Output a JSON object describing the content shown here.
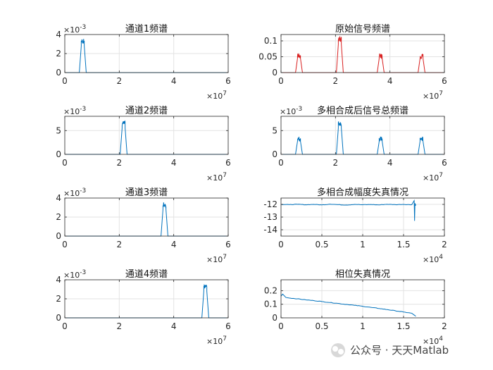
{
  "chart_data": [
    {
      "type": "line",
      "title": "通道1频谱",
      "color": "#0072bd",
      "xlim": [
        0,
        6
      ],
      "ylim": [
        0,
        4
      ],
      "xticks": [
        "0",
        "2",
        "4",
        "6"
      ],
      "yticks": [
        "0",
        "2",
        "4"
      ],
      "x_exponent": {
        "base": "×10",
        "power": "7"
      },
      "y_exponent": {
        "base": "×10",
        "power": "-3"
      },
      "peaks": [
        {
          "center": 0.66,
          "halfwidth": 0.055,
          "value": 3.3
        }
      ],
      "peak_noise": 0.25
    },
    {
      "type": "line",
      "title": "原始信号频谱",
      "color": "#d92020",
      "xlim": [
        0,
        6
      ],
      "ylim": [
        0,
        0.12
      ],
      "xticks": [
        "0",
        "2",
        "4",
        "6"
      ],
      "yticks": [
        "0",
        "0.05",
        "0.1"
      ],
      "x_exponent": {
        "base": "×10",
        "power": "7"
      },
      "y_exponent": null,
      "peaks": [
        {
          "center": 0.66,
          "halfwidth": 0.055,
          "value": 0.052
        },
        {
          "center": 2.16,
          "halfwidth": 0.055,
          "value": 0.105
        },
        {
          "center": 3.66,
          "halfwidth": 0.055,
          "value": 0.052
        },
        {
          "center": 5.16,
          "halfwidth": 0.055,
          "value": 0.052
        }
      ],
      "peak_noise": 0.008
    },
    {
      "type": "line",
      "title": "通道2频谱",
      "color": "#0072bd",
      "xlim": [
        0,
        6
      ],
      "ylim": [
        0,
        8
      ],
      "xticks": [
        "0",
        "2",
        "4",
        "6"
      ],
      "yticks": [
        "0",
        "5"
      ],
      "x_exponent": {
        "base": "×10",
        "power": "7"
      },
      "y_exponent": {
        "base": "×10",
        "power": "-3"
      },
      "peaks": [
        {
          "center": 2.16,
          "halfwidth": 0.055,
          "value": 6.5
        }
      ],
      "peak_noise": 0.5
    },
    {
      "type": "line",
      "title": "多相合成后信号总频谱",
      "color": "#0072bd",
      "xlim": [
        0,
        6
      ],
      "ylim": [
        0,
        8
      ],
      "xticks": [
        "0",
        "2",
        "4",
        "6"
      ],
      "yticks": [
        "0",
        "5"
      ],
      "x_exponent": {
        "base": "×10",
        "power": "7"
      },
      "y_exponent": {
        "base": "×10",
        "power": "-3"
      },
      "peaks": [
        {
          "center": 0.66,
          "halfwidth": 0.055,
          "value": 3.2
        },
        {
          "center": 2.16,
          "halfwidth": 0.055,
          "value": 6.5
        },
        {
          "center": 3.66,
          "halfwidth": 0.055,
          "value": 3.2
        },
        {
          "center": 5.16,
          "halfwidth": 0.055,
          "value": 3.2
        }
      ],
      "peak_noise": 0.5
    },
    {
      "type": "line",
      "title": "通道3频谱",
      "color": "#0072bd",
      "xlim": [
        0,
        6
      ],
      "ylim": [
        0,
        4
      ],
      "xticks": [
        "0",
        "2",
        "4",
        "6"
      ],
      "yticks": [
        "0",
        "2",
        "4"
      ],
      "x_exponent": {
        "base": "×10",
        "power": "7"
      },
      "y_exponent": {
        "base": "×10",
        "power": "-3"
      },
      "peaks": [
        {
          "center": 3.66,
          "halfwidth": 0.055,
          "value": 3.3
        }
      ],
      "peak_noise": 0.25
    },
    {
      "type": "line",
      "title": "多相合成幅度失真情况",
      "color": "#0072bd",
      "xlim": [
        0,
        2
      ],
      "ylim": [
        -14.5,
        -11.5
      ],
      "xticks": [
        "0",
        "0.5",
        "1",
        "1.5",
        "2"
      ],
      "yticks": [
        "-12",
        "-13",
        "-14"
      ],
      "ytick_values": [
        -12,
        -13,
        -14
      ],
      "x_exponent": {
        "base": "×10",
        "power": "4"
      },
      "y_exponent": null,
      "series": [
        {
          "x": [
            0,
            0.1,
            0.2,
            0.3,
            0.4,
            0.5,
            0.6,
            0.7,
            0.8,
            0.9,
            1.0,
            1.1,
            1.2,
            1.3,
            1.4,
            1.5,
            1.6,
            1.63,
            1.635,
            1.64,
            1.645,
            1.65
          ],
          "y": [
            -12.0,
            -12.02,
            -11.99,
            -12.03,
            -12.0,
            -12.04,
            -11.98,
            -12.02,
            -12.05,
            -12.0,
            -12.03,
            -12.01,
            -12.04,
            -11.99,
            -12.02,
            -12.0,
            -12.03,
            -11.7,
            -13.3,
            -11.9,
            -12.1,
            -12.0
          ]
        }
      ]
    },
    {
      "type": "line",
      "title": "通道4频谱",
      "color": "#0072bd",
      "xlim": [
        0,
        6
      ],
      "ylim": [
        0,
        4
      ],
      "xticks": [
        "0",
        "2",
        "4",
        "6"
      ],
      "yticks": [
        "0",
        "2",
        "4"
      ],
      "x_exponent": {
        "base": "×10",
        "power": "7"
      },
      "y_exponent": {
        "base": "×10",
        "power": "-3"
      },
      "peaks": [
        {
          "center": 5.16,
          "halfwidth": 0.055,
          "value": 3.3
        }
      ],
      "peak_noise": 0.25
    },
    {
      "type": "line",
      "title": "相位失真情况",
      "color": "#0072bd",
      "xlim": [
        0,
        2
      ],
      "ylim": [
        0,
        0.28
      ],
      "xticks": [
        "0",
        "0.5",
        "1",
        "1.5",
        "2"
      ],
      "yticks": [
        "0",
        "0.1",
        "0.2"
      ],
      "x_exponent": {
        "base": "×10",
        "power": "4"
      },
      "y_exponent": null,
      "series": [
        {
          "x": [
            0,
            0.02,
            0.06,
            0.1,
            0.2,
            0.3,
            0.4,
            0.5,
            0.6,
            0.7,
            0.8,
            0.9,
            1.0,
            1.1,
            1.2,
            1.3,
            1.4,
            1.5,
            1.6,
            1.62,
            1.65
          ],
          "y": [
            0.16,
            0.175,
            0.15,
            0.146,
            0.14,
            0.133,
            0.127,
            0.12,
            0.113,
            0.106,
            0.099,
            0.092,
            0.085,
            0.077,
            0.069,
            0.061,
            0.052,
            0.043,
            0.034,
            0.025,
            0.012
          ]
        }
      ]
    }
  ],
  "watermark": {
    "icon": "wechat-official-account-icon",
    "text": "公众号 · 天天Matlab"
  }
}
